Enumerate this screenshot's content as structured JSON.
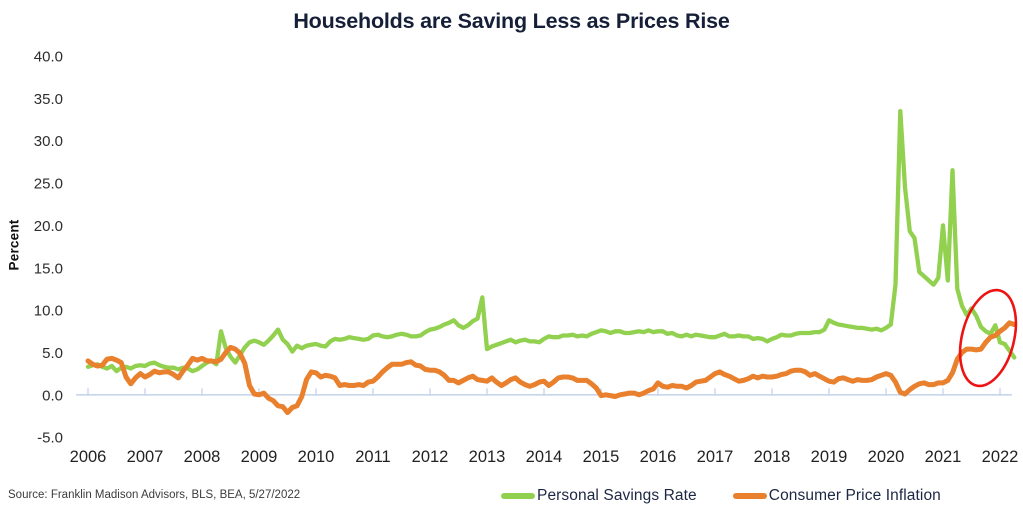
{
  "title": "Households are Saving Less as Prices Rise",
  "source": "Source: Franklin Madison Advisors, BLS, BEA, 5/27/2022",
  "colors": {
    "savings_green": "#92d050",
    "inflation_orange": "#e8802d",
    "annotation_red": "#ee1313",
    "axis": "#c8d6ec",
    "title_navy": "#151f38"
  },
  "legend": {
    "items": [
      {
        "label": "Personal Savings Rate",
        "color": "#92d050"
      },
      {
        "label": "Consumer Price Inflation",
        "color": "#e8802d"
      }
    ]
  },
  "annotation": {
    "shape": "ellipse-highlight",
    "color": "#ee1313",
    "meaning": "circles late-2021 to 2022 crossover where inflation rises above savings rate"
  },
  "chart_data": {
    "type": "line",
    "title": "Households are Saving Less as Prices Rise",
    "xlabel": "",
    "ylabel": "Percent",
    "ylim": [
      -5,
      40
    ],
    "y_step": 5,
    "grid": false,
    "legend_position": "bottom",
    "frequency": "monthly",
    "x_start": "2006-01",
    "x_end": "2022-04",
    "x_tick_labels": [
      "2006",
      "2007",
      "2008",
      "2009",
      "2010",
      "2011",
      "2012",
      "2013",
      "2014",
      "2015",
      "2016",
      "2017",
      "2018",
      "2019",
      "2020",
      "2021",
      "2022"
    ],
    "series": [
      {
        "name": "Personal Savings Rate",
        "color": "#92d050",
        "values": [
          3.3,
          3.5,
          3.6,
          3.3,
          3.1,
          3.4,
          2.8,
          3.2,
          3.3,
          3.1,
          3.4,
          3.5,
          3.4,
          3.7,
          3.8,
          3.5,
          3.3,
          3.2,
          3.2,
          3.0,
          3.2,
          3.1,
          2.8,
          3.0,
          3.4,
          3.8,
          4.0,
          3.6,
          7.5,
          5.5,
          4.5,
          3.8,
          4.7,
          5.6,
          6.2,
          6.4,
          6.2,
          5.9,
          6.4,
          7.0,
          7.7,
          6.5,
          6.0,
          5.1,
          5.8,
          5.5,
          5.8,
          5.9,
          6.0,
          5.8,
          5.7,
          6.3,
          6.6,
          6.5,
          6.6,
          6.8,
          6.7,
          6.6,
          6.5,
          6.6,
          7.0,
          7.1,
          6.9,
          6.8,
          6.9,
          7.1,
          7.2,
          7.1,
          6.9,
          6.9,
          7.0,
          7.4,
          7.7,
          7.8,
          8.0,
          8.3,
          8.5,
          8.8,
          8.2,
          7.9,
          8.2,
          8.7,
          9.0,
          11.5,
          5.4,
          5.7,
          5.9,
          6.1,
          6.3,
          6.5,
          6.2,
          6.4,
          6.5,
          6.3,
          6.3,
          6.2,
          6.6,
          6.9,
          6.8,
          6.8,
          7.0,
          7.0,
          7.1,
          6.9,
          7.0,
          6.9,
          7.2,
          7.4,
          7.6,
          7.5,
          7.3,
          7.5,
          7.5,
          7.3,
          7.3,
          7.4,
          7.5,
          7.4,
          7.6,
          7.4,
          7.5,
          7.5,
          7.2,
          7.3,
          7.0,
          6.9,
          7.1,
          6.9,
          7.1,
          7.0,
          6.9,
          6.8,
          6.8,
          7.0,
          7.2,
          6.9,
          6.9,
          7.0,
          6.9,
          6.9,
          6.6,
          6.7,
          6.6,
          6.3,
          6.6,
          6.8,
          7.1,
          7.0,
          7.0,
          7.2,
          7.3,
          7.3,
          7.3,
          7.4,
          7.4,
          7.7,
          8.8,
          8.5,
          8.3,
          8.2,
          8.1,
          8.0,
          7.9,
          7.9,
          7.8,
          7.7,
          7.8,
          7.6,
          7.9,
          8.3,
          13.0,
          33.5,
          24.5,
          19.3,
          18.5,
          14.5,
          14.0,
          13.5,
          13.0,
          13.8,
          20.0,
          13.5,
          26.5,
          12.5,
          10.5,
          9.4,
          10.2,
          9.3,
          8.0,
          7.5,
          7.2,
          8.2,
          6.2,
          6.0,
          5.2,
          4.4
        ]
      },
      {
        "name": "Consumer Price Inflation",
        "color": "#e8802d",
        "values": [
          4.0,
          3.6,
          3.4,
          3.5,
          4.2,
          4.3,
          4.1,
          3.8,
          2.1,
          1.3,
          2.0,
          2.5,
          2.1,
          2.4,
          2.8,
          2.6,
          2.7,
          2.7,
          2.4,
          2.0,
          2.8,
          3.5,
          4.3,
          4.1,
          4.3,
          4.0,
          4.0,
          3.9,
          4.2,
          5.0,
          5.6,
          5.4,
          4.9,
          3.7,
          1.1,
          0.1,
          0.0,
          0.2,
          -0.4,
          -0.7,
          -1.3,
          -1.4,
          -2.1,
          -1.5,
          -1.3,
          -0.2,
          1.8,
          2.7,
          2.6,
          2.1,
          2.3,
          2.2,
          2.0,
          1.1,
          1.2,
          1.1,
          1.1,
          1.2,
          1.1,
          1.5,
          1.6,
          2.1,
          2.7,
          3.2,
          3.6,
          3.6,
          3.6,
          3.8,
          3.9,
          3.5,
          3.4,
          3.0,
          2.9,
          2.9,
          2.7,
          2.3,
          1.7,
          1.7,
          1.4,
          1.7,
          2.0,
          2.2,
          1.8,
          1.7,
          1.6,
          2.0,
          1.5,
          1.1,
          1.4,
          1.8,
          2.0,
          1.5,
          1.2,
          1.0,
          1.2,
          1.5,
          1.6,
          1.1,
          1.5,
          2.0,
          2.1,
          2.1,
          2.0,
          1.7,
          1.7,
          1.7,
          1.3,
          0.8,
          -0.1,
          0.0,
          -0.1,
          -0.2,
          0.0,
          0.1,
          0.2,
          0.2,
          0.0,
          0.2,
          0.5,
          0.7,
          1.4,
          1.0,
          0.9,
          1.1,
          1.0,
          1.0,
          0.8,
          1.1,
          1.5,
          1.6,
          1.7,
          2.1,
          2.5,
          2.7,
          2.4,
          2.2,
          1.9,
          1.6,
          1.7,
          1.9,
          2.2,
          2.0,
          2.2,
          2.1,
          2.1,
          2.2,
          2.4,
          2.5,
          2.8,
          2.9,
          2.9,
          2.7,
          2.3,
          2.5,
          2.2,
          1.9,
          1.6,
          1.5,
          1.9,
          2.0,
          1.8,
          1.6,
          1.8,
          1.7,
          1.7,
          1.8,
          2.1,
          2.3,
          2.5,
          2.3,
          1.5,
          0.3,
          0.1,
          0.6,
          1.0,
          1.3,
          1.4,
          1.2,
          1.2,
          1.4,
          1.4,
          1.7,
          2.6,
          4.2,
          5.0,
          5.4,
          5.4,
          5.3,
          5.4,
          6.2,
          6.8,
          7.0,
          7.5,
          7.9,
          8.5,
          8.3
        ]
      }
    ]
  }
}
